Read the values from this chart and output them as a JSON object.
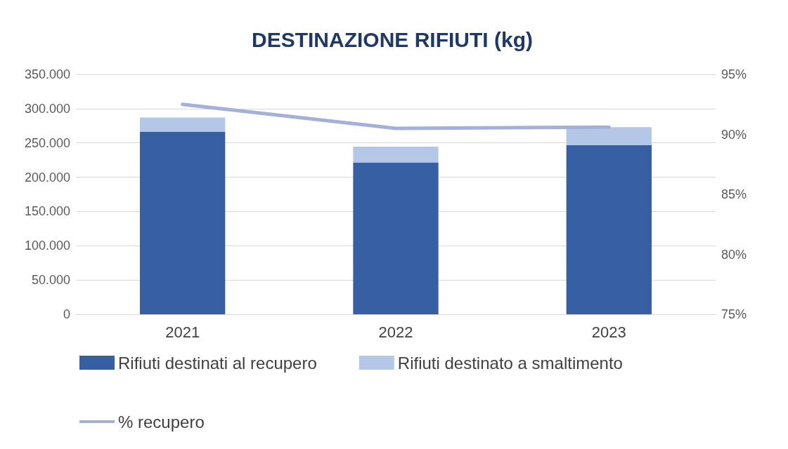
{
  "chart_data": {
    "type": "bar",
    "title": "DESTINAZIONE RIFIUTI (kg)",
    "categories": [
      "2021",
      "2022",
      "2023"
    ],
    "stacked": true,
    "series": [
      {
        "name": "Rifiuti destinati al recupero",
        "color": "#375fa3",
        "values": [
          266000,
          221500,
          247000
        ]
      },
      {
        "name": "Rifiuti destinato a smaltimento",
        "color": "#b4c7e7",
        "values": [
          21000,
          23000,
          26000
        ]
      },
      {
        "name": "% recupero",
        "type": "line",
        "axis": "y2",
        "color": "#a4b0d8",
        "values": [
          92.5,
          90.5,
          90.6
        ]
      }
    ],
    "ylim": [
      0,
      350000
    ],
    "yticks": [
      {
        "value": 0,
        "label": "0"
      },
      {
        "value": 50000,
        "label": "50.000"
      },
      {
        "value": 100000,
        "label": "100.000"
      },
      {
        "value": 150000,
        "label": "150.000"
      },
      {
        "value": 200000,
        "label": "200.000"
      },
      {
        "value": 250000,
        "label": "250.000"
      },
      {
        "value": 300000,
        "label": "300.000"
      },
      {
        "value": 350000,
        "label": "350.000"
      }
    ],
    "y2lim": [
      75,
      95
    ],
    "y2ticks": [
      {
        "value": 75,
        "label": "75%"
      },
      {
        "value": 80,
        "label": "80%"
      },
      {
        "value": 85,
        "label": "85%"
      },
      {
        "value": 90,
        "label": "90%"
      },
      {
        "value": 95,
        "label": "95%"
      }
    ],
    "grid": "y",
    "legend": "bottom",
    "marker": "none"
  }
}
